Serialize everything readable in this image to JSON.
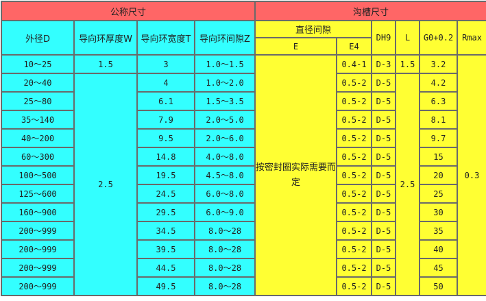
{
  "header": {
    "nominal": "公称尺寸",
    "groove": "沟槽尺寸",
    "od": "外径D",
    "guide_thickness": "导向环厚度W",
    "guide_width": "导向环宽度T",
    "guide_gap": "导向环间隙Z",
    "dia_gap": "直径间隙",
    "e": "E",
    "e4": "E4",
    "dh9": "DH9",
    "l": "L",
    "g0": "G0+0.2",
    "rmax": "Rmax"
  },
  "merged": {
    "w_first": "1.5",
    "w_rest": "2.5",
    "e_note": "按密封圈实际需要而定",
    "l_first": "1.5",
    "l_rest": "2.5",
    "rmax": "0.3"
  },
  "rows": [
    {
      "d": "10～25",
      "t": "3",
      "z": "1.0～1.5",
      "e4": "0.4-1",
      "dh9": "D-3",
      "g": "3.2"
    },
    {
      "d": "20～40",
      "t": "4",
      "z": "1.0～2.0",
      "e4": "0.5-2",
      "dh9": "D-5",
      "g": "4.2"
    },
    {
      "d": "25～80",
      "t": "6.1",
      "z": "1.5～3.5",
      "e4": "0.5-2",
      "dh9": "D-5",
      "g": "6.3"
    },
    {
      "d": "35～140",
      "t": "7.9",
      "z": "2.0～5.0",
      "e4": "0.5-2",
      "dh9": "D-5",
      "g": "8.1"
    },
    {
      "d": "40～200",
      "t": "9.5",
      "z": "2.0～6.0",
      "e4": "0.5-2",
      "dh9": "D-5",
      "g": "9.7"
    },
    {
      "d": "60～300",
      "t": "14.8",
      "z": "4.0～8.0",
      "e4": "0.5-2",
      "dh9": "D-5",
      "g": "15"
    },
    {
      "d": "100～500",
      "t": "19.5",
      "z": "4.5～8.0",
      "e4": "0.5-2",
      "dh9": "D-5",
      "g": "20"
    },
    {
      "d": "125～600",
      "t": "24.5",
      "z": "6.0～8.0",
      "e4": "0.5-2",
      "dh9": "D-5",
      "g": "25"
    },
    {
      "d": "160～900",
      "t": "29.5",
      "z": "6.0～9.0",
      "e4": "0.5-2",
      "dh9": "D-5",
      "g": "30"
    },
    {
      "d": "200～999",
      "t": "34.5",
      "z": "8.0～28",
      "e4": "0.5-2",
      "dh9": "D-5",
      "g": "35"
    },
    {
      "d": "200～999",
      "t": "39.5",
      "z": "8.0～28",
      "e4": "0.5-2",
      "dh9": "D-5",
      "g": "40"
    },
    {
      "d": "200～999",
      "t": "44.5",
      "z": "8.0～28",
      "e4": "0.5-2",
      "dh9": "D-5",
      "g": "45"
    },
    {
      "d": "200～999",
      "t": "49.5",
      "z": "8.0～28",
      "e4": "0.5-2",
      "dh9": "D-5",
      "g": "50"
    }
  ]
}
